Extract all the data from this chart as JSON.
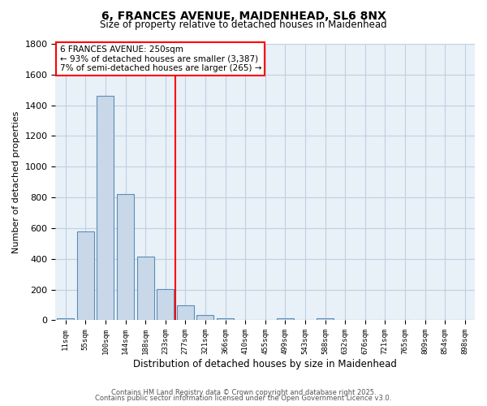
{
  "title_line1": "6, FRANCES AVENUE, MAIDENHEAD, SL6 8NX",
  "title_line2": "Size of property relative to detached houses in Maidenhead",
  "xlabel": "Distribution of detached houses by size in Maidenhead",
  "ylabel": "Number of detached properties",
  "categories": [
    "11sqm",
    "55sqm",
    "100sqm",
    "144sqm",
    "188sqm",
    "233sqm",
    "277sqm",
    "321sqm",
    "366sqm",
    "410sqm",
    "455sqm",
    "499sqm",
    "543sqm",
    "588sqm",
    "632sqm",
    "676sqm",
    "721sqm",
    "765sqm",
    "809sqm",
    "854sqm",
    "898sqm"
  ],
  "values": [
    15,
    580,
    1460,
    820,
    415,
    205,
    100,
    35,
    15,
    0,
    0,
    15,
    0,
    15,
    0,
    0,
    0,
    0,
    0,
    0,
    0
  ],
  "bar_color": "#c8d8e8",
  "bar_edge_color": "#5b8db8",
  "grid_color": "#c0d0e0",
  "background_color": "#e8f0f8",
  "red_line_x": 5.5,
  "ylim": [
    0,
    1800
  ],
  "yticks": [
    0,
    200,
    400,
    600,
    800,
    1000,
    1200,
    1400,
    1600,
    1800
  ],
  "annotation_title": "6 FRANCES AVENUE: 250sqm",
  "annotation_line1": "← 93% of detached houses are smaller (3,387)",
  "annotation_line2": "7% of semi-detached houses are larger (265) →",
  "footer_line1": "Contains HM Land Registry data © Crown copyright and database right 2025.",
  "footer_line2": "Contains public sector information licensed under the Open Government Licence v3.0."
}
